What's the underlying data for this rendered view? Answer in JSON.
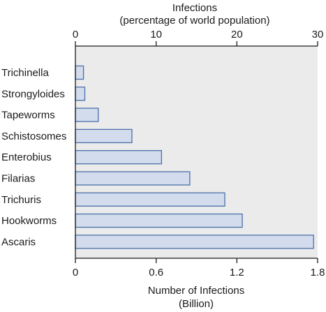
{
  "chart_data": {
    "type": "bar",
    "orientation": "horizontal",
    "categories": [
      "Trichinella",
      "Strongyloides",
      "Tapeworms",
      "Schistosomes",
      "Enterobius",
      "Filarias",
      "Trichuris",
      "Hookworms",
      "Ascaris"
    ],
    "values": [
      0.06,
      0.07,
      0.17,
      0.42,
      0.64,
      0.85,
      1.11,
      1.24,
      1.77
    ],
    "xlabel_bottom": [
      "Number of Infections",
      "(Billion)"
    ],
    "xlabel_top": [
      "Infections",
      "(percentage of world population)"
    ],
    "x_bottom_ticks": [
      "0",
      "0.6",
      "1.2",
      "1.8"
    ],
    "x_bottom_tick_values": [
      0,
      0.6,
      1.2,
      1.8
    ],
    "x_top_ticks": [
      "0",
      "10",
      "20",
      "30"
    ],
    "x_top_tick_values": [
      0,
      10,
      20,
      30
    ],
    "xlim": [
      0,
      1.8
    ],
    "x_top_lim": [
      0,
      30
    ],
    "grid": false,
    "colors": {
      "plot_background": "#ebebeb",
      "bar_fill": "#d3dcec",
      "bar_stroke": "#4a70aa",
      "axis": "#1a1a1a"
    }
  }
}
